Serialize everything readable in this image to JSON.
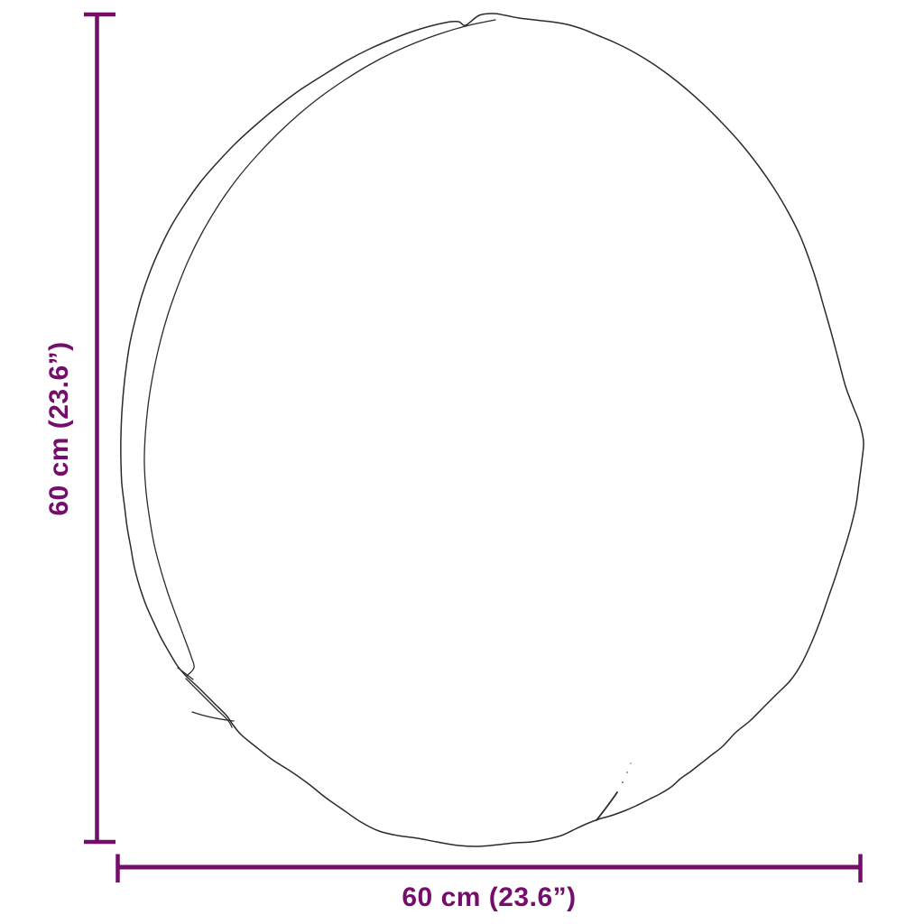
{
  "diagram": {
    "height_label": "60 cm (23.6”)",
    "width_label": "60 cm (23.6”)",
    "colors": {
      "accent": "#750D6C",
      "outline": "#2B2B2B",
      "background": "#FFFFFF"
    }
  }
}
